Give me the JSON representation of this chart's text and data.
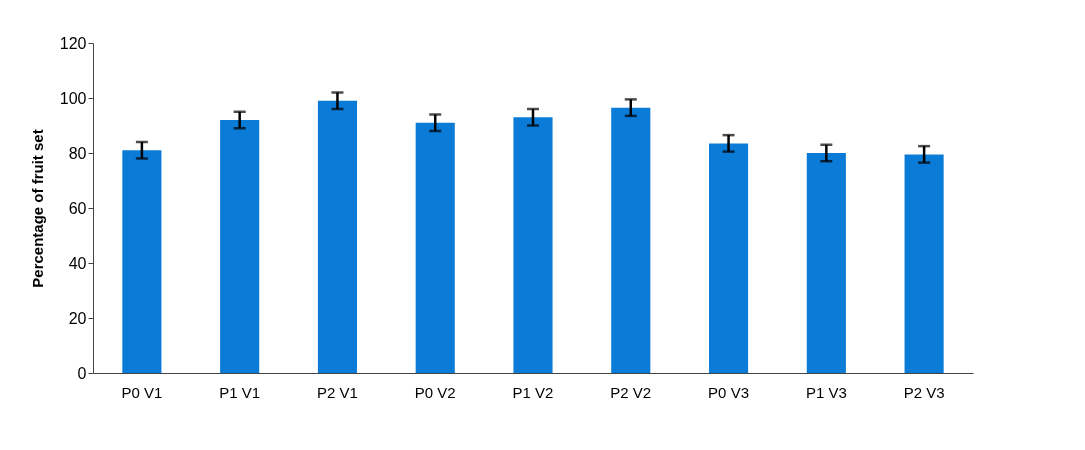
{
  "chart_data": {
    "type": "bar",
    "ylabel": "Percentage of fruit set",
    "categories": [
      "P0 V1",
      "P1 V1",
      "P2 V1",
      "P0 V2",
      "P1 V2",
      "P2 V2",
      "P0 V3",
      "P1 V3",
      "P2 V3"
    ],
    "values": [
      81,
      92,
      99,
      91,
      93,
      96.5,
      83.5,
      80,
      79.5
    ],
    "errors": [
      3,
      3,
      3,
      3,
      3,
      3,
      3,
      3,
      3
    ],
    "color": "#0a7bd6",
    "ylim": [
      0,
      120
    ],
    "yticks": [
      0,
      20,
      40,
      60,
      80,
      100,
      120
    ],
    "grid": false
  }
}
